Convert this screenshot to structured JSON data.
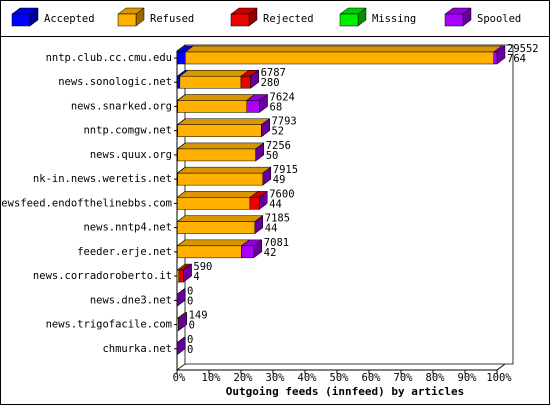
{
  "chart_data": {
    "type": "bar",
    "orientation": "horizontal",
    "stacked": true,
    "xlabel": "Outgoing feeds (innfeed) by articles",
    "categories": [
      "nntp.club.cc.cmu.edu",
      "news.sonologic.net",
      "news.snarked.org",
      "nntp.comgw.net",
      "news.quux.org",
      "nk-in.news.weretis.net",
      "newsfeed.endofthelinebbs.com",
      "news.nntp4.net",
      "feeder.erje.net",
      "news.corradoroberto.it",
      "news.dne3.net",
      "news.trigofacile.com",
      "chmurka.net"
    ],
    "series": [
      {
        "name": "Accepted",
        "color": "#0000ff",
        "values": [
          2.6,
          0.9,
          0.2,
          0.2,
          0.2,
          0.2,
          0.1,
          0.1,
          0.1,
          0,
          0,
          0,
          0
        ]
      },
      {
        "name": "Refused",
        "color": "#ffb000",
        "values": [
          96.4,
          19.1,
          21.6,
          26.2,
          24.4,
          26.6,
          22.7,
          24.2,
          20.0,
          0.6,
          0,
          0.5,
          0
        ]
      },
      {
        "name": "Rejected",
        "color": "#ee0000",
        "values": [
          0,
          3.0,
          0,
          0,
          0,
          0,
          2.9,
          0,
          0,
          1.4,
          0,
          0,
          0
        ]
      },
      {
        "name": "Missing",
        "color": "#00ee00",
        "values": [
          0,
          0,
          0,
          0,
          0,
          0,
          0,
          0,
          0,
          0,
          0,
          0,
          0
        ]
      },
      {
        "name": "Spooled",
        "color": "#aa00ff",
        "values": [
          1.0,
          0,
          4.0,
          0,
          0,
          0,
          0,
          0,
          3.9,
          0,
          0,
          0,
          0
        ]
      }
    ],
    "offered": [
      29552,
      6787,
      7624,
      7793,
      7256,
      7915,
      7600,
      7185,
      7081,
      590,
      0,
      149,
      0
    ],
    "accepted": [
      764,
      280,
      68,
      52,
      50,
      49,
      44,
      44,
      42,
      4,
      0,
      0,
      0
    ],
    "xlim": [
      0,
      100
    ],
    "xticks": [
      {
        "value": 0,
        "label": "0%"
      },
      {
        "value": 10,
        "label": "10%"
      },
      {
        "value": 20,
        "label": "20%"
      },
      {
        "value": 30,
        "label": "30%"
      },
      {
        "value": 40,
        "label": "40%"
      },
      {
        "value": 50,
        "label": "50%"
      },
      {
        "value": 60,
        "label": "60%"
      },
      {
        "value": 70,
        "label": "70%"
      },
      {
        "value": 80,
        "label": "80%"
      },
      {
        "value": 90,
        "label": "90%"
      },
      {
        "value": 100,
        "label": "100%"
      }
    ]
  }
}
